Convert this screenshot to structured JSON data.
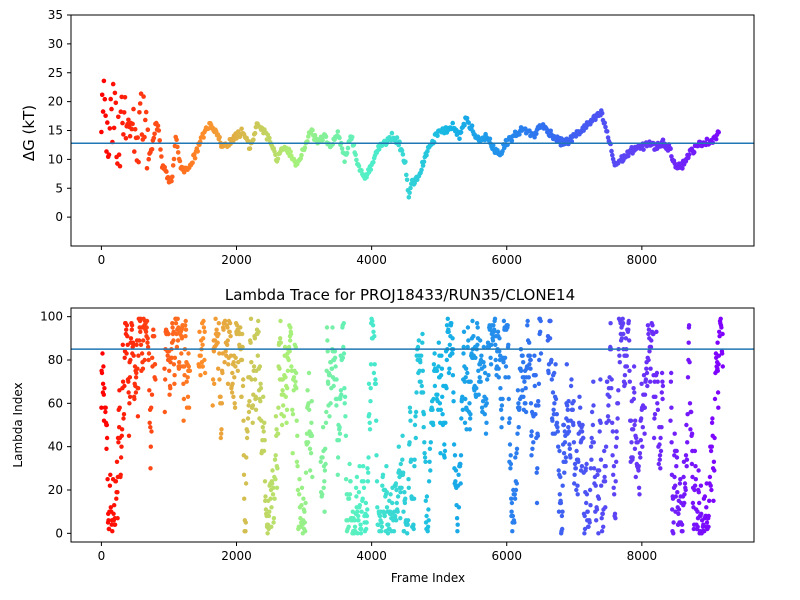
{
  "chart_data": [
    {
      "type": "scatter",
      "title": "",
      "xlabel": "",
      "ylabel": "ΔG (kT)",
      "xlim": [
        -450,
        9660
      ],
      "ylim": [
        -5,
        35
      ],
      "xticks": [
        "0",
        "2000",
        "4000",
        "6000",
        "8000"
      ],
      "yticks": [
        "0",
        "5",
        "10",
        "15",
        "20",
        "25",
        "30",
        "35"
      ],
      "xtick_values": [
        0,
        2000,
        4000,
        6000,
        8000
      ],
      "ytick_values": [
        0,
        5,
        10,
        15,
        20,
        25,
        30,
        35
      ],
      "hline": 12.8,
      "hline_color": "#1f77b4",
      "colormap": "rainbow_r",
      "grid": false,
      "series": [
        {
          "x": [
            0,
            50,
            100,
            150,
            200,
            250,
            300,
            350,
            400,
            450,
            500,
            550,
            600,
            650,
            700,
            750,
            800,
            850,
            900,
            950,
            1000,
            1050,
            1100,
            1150,
            1200,
            1300,
            1400,
            1500,
            1600,
            1700,
            1800,
            1900,
            2000,
            2100,
            2200,
            2300,
            2400,
            2500,
            2600,
            2700,
            2800,
            2900,
            3000,
            3100,
            3200,
            3300,
            3400,
            3500,
            3600,
            3700,
            3800,
            3900,
            4000,
            4100,
            4200,
            4300,
            4400,
            4500,
            4550,
            4600,
            4700,
            4800,
            4900,
            5000,
            5100,
            5200,
            5300,
            5400,
            5500,
            5600,
            5700,
            5800,
            5900,
            6000,
            6100,
            6200,
            6300,
            6400,
            6500,
            6600,
            6700,
            6800,
            6900,
            7000,
            7100,
            7200,
            7300,
            7400,
            7500,
            7600,
            7700,
            7800,
            7900,
            8000,
            8100,
            8200,
            8300,
            8400,
            8500,
            8600,
            8700,
            8800,
            8900,
            9000,
            9100,
            9150
          ],
          "y": [
            20,
            18,
            14,
            17,
            19,
            13,
            15,
            18,
            14,
            17,
            13,
            11,
            19,
            14,
            10,
            12,
            16,
            15,
            9,
            8,
            6,
            7,
            14,
            10,
            8,
            9,
            11,
            14,
            16,
            15,
            12,
            13,
            14,
            15,
            12,
            16,
            15,
            13,
            10,
            12,
            11,
            9,
            12,
            15,
            13,
            14,
            12,
            15,
            10,
            14,
            9,
            7,
            9,
            12,
            13,
            14,
            13,
            9,
            3,
            6,
            7,
            11,
            13,
            15,
            15,
            16,
            14,
            17,
            15,
            13,
            14,
            12,
            11,
            13,
            14,
            15,
            15,
            14,
            16,
            15,
            14,
            13,
            13,
            14,
            15,
            16,
            17,
            18,
            14,
            9,
            10,
            11,
            12,
            12,
            13,
            12,
            13,
            12,
            9,
            9,
            11,
            12,
            13,
            13,
            14,
            15
          ]
        }
      ]
    },
    {
      "type": "scatter",
      "title": "Lambda Trace for PROJ18433/RUN35/CLONE14",
      "xlabel": "Frame Index",
      "ylabel": "Lambda Index",
      "xlim": [
        -450,
        9660
      ],
      "ylim": [
        -4,
        104
      ],
      "xticks": [
        "0",
        "2000",
        "4000",
        "6000",
        "8000"
      ],
      "yticks": [
        "0",
        "20",
        "40",
        "60",
        "80",
        "100"
      ],
      "xtick_values": [
        0,
        2000,
        4000,
        6000,
        8000
      ],
      "ytick_values": [
        0,
        20,
        40,
        60,
        80,
        100
      ],
      "hline": 85,
      "hline_color": "#1f77b4",
      "colormap": "rainbow_r",
      "grid": false,
      "x_range": [
        0,
        9200
      ],
      "y_range": [
        0,
        99
      ]
    }
  ]
}
